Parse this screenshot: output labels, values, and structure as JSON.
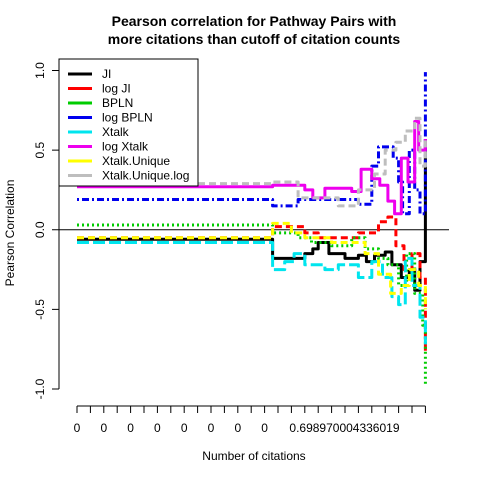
{
  "chart_data": {
    "type": "line",
    "title": [
      "Pearson correlation for Pathway Pairs with",
      "more citations than cutoff of citation counts"
    ],
    "xlabel": "Number of citations",
    "ylabel": "Pearson Correlation",
    "ylim": [
      -1.0,
      1.0
    ],
    "yticks": [
      "-1.0",
      "-0.5",
      "0.0",
      "0.5",
      "1.0"
    ],
    "ytick_values": [
      -1.0,
      -0.5,
      0.0,
      0.5,
      1.0
    ],
    "xtick_count": 27,
    "xtick_labels": [
      "0",
      "0",
      "0",
      "0",
      "0",
      "0",
      "0",
      "0",
      "0.698970004336019"
    ],
    "xtick_label_indices": [
      0,
      2,
      4,
      6,
      8,
      10,
      12,
      14,
      16
    ],
    "x_range": [
      0,
      26.5
    ],
    "reference_line_y": 0,
    "legend_position": "top-left",
    "series": [
      {
        "name": "JI",
        "color": "#000000",
        "dash": "solid",
        "points": [
          [
            0,
            -0.06
          ],
          [
            14.6,
            -0.06
          ],
          [
            14.6,
            -0.18
          ],
          [
            17,
            -0.18
          ],
          [
            17,
            -0.15
          ],
          [
            17.6,
            -0.15
          ],
          [
            17.6,
            -0.12
          ],
          [
            18,
            -0.12
          ],
          [
            18,
            -0.08
          ],
          [
            18.8,
            -0.08
          ],
          [
            18.8,
            -0.15
          ],
          [
            20,
            -0.15
          ],
          [
            20,
            -0.18
          ],
          [
            21,
            -0.18
          ],
          [
            21,
            -0.16
          ],
          [
            21.6,
            -0.16
          ],
          [
            21.6,
            -0.2
          ],
          [
            22.2,
            -0.2
          ],
          [
            22.2,
            -0.16
          ],
          [
            23,
            -0.16
          ],
          [
            23,
            -0.14
          ],
          [
            23.5,
            -0.14
          ],
          [
            23.5,
            -0.22
          ],
          [
            24.2,
            -0.22
          ],
          [
            24.2,
            -0.3
          ],
          [
            24.8,
            -0.3
          ],
          [
            24.8,
            -0.25
          ],
          [
            25.2,
            -0.25
          ],
          [
            25.2,
            -0.38
          ],
          [
            25.6,
            -0.38
          ],
          [
            25.6,
            -0.2
          ],
          [
            26,
            -0.2
          ],
          [
            26,
            0.57
          ]
        ]
      },
      {
        "name": "log JI",
        "color": "#ff0000",
        "dash": "dashed",
        "points": [
          [
            0,
            -0.05
          ],
          [
            14.6,
            -0.05
          ],
          [
            14.6,
            0.02
          ],
          [
            17,
            0.02
          ],
          [
            17,
            -0.02
          ],
          [
            18,
            -0.02
          ],
          [
            18,
            -0.05
          ],
          [
            21,
            -0.05
          ],
          [
            21,
            -0.02
          ],
          [
            22.5,
            -0.02
          ],
          [
            22.5,
            0.05
          ],
          [
            23.2,
            0.05
          ],
          [
            23.2,
            0.08
          ],
          [
            23.8,
            0.08
          ],
          [
            23.8,
            -0.1
          ],
          [
            24.4,
            -0.1
          ],
          [
            24.4,
            -0.25
          ],
          [
            25,
            -0.25
          ],
          [
            25,
            -0.15
          ],
          [
            25.6,
            -0.15
          ],
          [
            25.6,
            -0.3
          ],
          [
            26,
            -0.3
          ],
          [
            26,
            -0.78
          ]
        ]
      },
      {
        "name": "BPLN",
        "color": "#00cc00",
        "dash": "dotted",
        "points": [
          [
            0,
            0.03
          ],
          [
            14.6,
            0.03
          ],
          [
            14.6,
            -0.02
          ],
          [
            16.5,
            -0.02
          ],
          [
            16.5,
            -0.05
          ],
          [
            17.5,
            -0.05
          ],
          [
            17.5,
            -0.08
          ],
          [
            19,
            -0.08
          ],
          [
            19,
            -0.1
          ],
          [
            20.5,
            -0.1
          ],
          [
            20.5,
            -0.05
          ],
          [
            21.5,
            -0.05
          ],
          [
            21.5,
            -0.12
          ],
          [
            22.5,
            -0.12
          ],
          [
            22.5,
            -0.18
          ],
          [
            23.2,
            -0.18
          ],
          [
            23.2,
            -0.22
          ],
          [
            24,
            -0.22
          ],
          [
            24,
            -0.35
          ],
          [
            24.6,
            -0.35
          ],
          [
            24.6,
            -0.15
          ],
          [
            25.2,
            -0.15
          ],
          [
            25.2,
            -0.4
          ],
          [
            25.8,
            -0.4
          ],
          [
            25.8,
            -0.6
          ],
          [
            26,
            -0.6
          ],
          [
            26,
            -0.97
          ]
        ]
      },
      {
        "name": "log BPLN",
        "color": "#0000ee",
        "dash": "dotdash",
        "points": [
          [
            0,
            0.19
          ],
          [
            14.6,
            0.19
          ],
          [
            14.6,
            0.15
          ],
          [
            16.5,
            0.15
          ],
          [
            16.5,
            0.19
          ],
          [
            21,
            0.19
          ],
          [
            21,
            0.16
          ],
          [
            22,
            0.16
          ],
          [
            22,
            0.4
          ],
          [
            22.5,
            0.4
          ],
          [
            22.5,
            0.52
          ],
          [
            23.6,
            0.52
          ],
          [
            23.6,
            0.45
          ],
          [
            24,
            0.45
          ],
          [
            24,
            0.3
          ],
          [
            24.3,
            0.3
          ],
          [
            24.3,
            0.1
          ],
          [
            24.8,
            0.1
          ],
          [
            24.8,
            0.5
          ],
          [
            25.2,
            0.5
          ],
          [
            25.2,
            0.25
          ],
          [
            25.6,
            0.25
          ],
          [
            25.6,
            0.1
          ],
          [
            26,
            0.1
          ],
          [
            26,
            0.99
          ]
        ]
      },
      {
        "name": "Xtalk",
        "color": "#00e5ee",
        "dash": "longdash",
        "points": [
          [
            0,
            -0.08
          ],
          [
            14.6,
            -0.08
          ],
          [
            14.6,
            -0.25
          ],
          [
            15.5,
            -0.25
          ],
          [
            15.5,
            -0.2
          ],
          [
            16.2,
            -0.2
          ],
          [
            16.2,
            -0.15
          ],
          [
            17,
            -0.15
          ],
          [
            17,
            -0.22
          ],
          [
            18.5,
            -0.22
          ],
          [
            18.5,
            -0.25
          ],
          [
            19.5,
            -0.25
          ],
          [
            19.5,
            -0.22
          ],
          [
            21,
            -0.22
          ],
          [
            21,
            -0.3
          ],
          [
            22,
            -0.3
          ],
          [
            22,
            -0.2
          ],
          [
            22.8,
            -0.2
          ],
          [
            22.8,
            -0.3
          ],
          [
            23.5,
            -0.3
          ],
          [
            23.5,
            -0.42
          ],
          [
            24,
            -0.42
          ],
          [
            24,
            -0.47
          ],
          [
            24.5,
            -0.47
          ],
          [
            24.5,
            -0.18
          ],
          [
            25,
            -0.18
          ],
          [
            25,
            -0.35
          ],
          [
            25.6,
            -0.35
          ],
          [
            25.6,
            -0.55
          ],
          [
            26,
            -0.55
          ],
          [
            26,
            -0.72
          ]
        ]
      },
      {
        "name": "log Xtalk",
        "color": "#ee00ee",
        "dash": "solid",
        "points": [
          [
            0,
            0.27
          ],
          [
            14.6,
            0.27
          ],
          [
            14.6,
            0.28
          ],
          [
            17,
            0.28
          ],
          [
            17,
            0.25
          ],
          [
            17.6,
            0.25
          ],
          [
            17.6,
            0.2
          ],
          [
            18.5,
            0.2
          ],
          [
            18.5,
            0.26
          ],
          [
            20.5,
            0.26
          ],
          [
            20.5,
            0.24
          ],
          [
            21.2,
            0.24
          ],
          [
            21.2,
            0.38
          ],
          [
            22,
            0.38
          ],
          [
            22,
            0.32
          ],
          [
            22.6,
            0.32
          ],
          [
            22.6,
            0.28
          ],
          [
            23.2,
            0.28
          ],
          [
            23.2,
            0.18
          ],
          [
            23.7,
            0.18
          ],
          [
            23.7,
            0.1
          ],
          [
            24.2,
            0.1
          ],
          [
            24.2,
            0.45
          ],
          [
            24.7,
            0.45
          ],
          [
            24.7,
            0.3
          ],
          [
            25.2,
            0.3
          ],
          [
            25.2,
            0.68
          ],
          [
            25.5,
            0.68
          ],
          [
            25.5,
            0.5
          ],
          [
            26,
            0.5
          ],
          [
            26,
            0.57
          ]
        ]
      },
      {
        "name": "Xtalk.Unique",
        "color": "#ffff00",
        "dash": "dashed",
        "points": [
          [
            0,
            -0.05
          ],
          [
            14.6,
            -0.05
          ],
          [
            14.6,
            0.04
          ],
          [
            16,
            0.04
          ],
          [
            16,
            -0.02
          ],
          [
            17,
            -0.02
          ],
          [
            17,
            -0.05
          ],
          [
            19,
            -0.05
          ],
          [
            19,
            -0.08
          ],
          [
            21.5,
            -0.08
          ],
          [
            21.5,
            -0.15
          ],
          [
            22.5,
            -0.15
          ],
          [
            22.5,
            -0.28
          ],
          [
            23.4,
            -0.28
          ],
          [
            23.4,
            -0.4
          ],
          [
            24.2,
            -0.4
          ],
          [
            24.2,
            -0.35
          ],
          [
            24.8,
            -0.35
          ],
          [
            24.8,
            -0.25
          ],
          [
            25.5,
            -0.25
          ],
          [
            25.5,
            -0.35
          ],
          [
            26,
            -0.35
          ],
          [
            26,
            -0.5
          ]
        ]
      },
      {
        "name": "Xtalk.Unique.log",
        "color": "#bebebe",
        "dash": "dashed",
        "points": [
          [
            0,
            0.29
          ],
          [
            14.6,
            0.29
          ],
          [
            14.6,
            0.3
          ],
          [
            16.5,
            0.3
          ],
          [
            16.5,
            0.2
          ],
          [
            19.5,
            0.2
          ],
          [
            19.5,
            0.15
          ],
          [
            21,
            0.15
          ],
          [
            21,
            0.25
          ],
          [
            22.2,
            0.25
          ],
          [
            22.2,
            0.35
          ],
          [
            23,
            0.35
          ],
          [
            23,
            0.5
          ],
          [
            23.8,
            0.5
          ],
          [
            23.8,
            0.55
          ],
          [
            24.5,
            0.55
          ],
          [
            24.5,
            0.62
          ],
          [
            25.2,
            0.62
          ],
          [
            25.2,
            0.7
          ],
          [
            25.6,
            0.7
          ],
          [
            25.6,
            0.4
          ],
          [
            26,
            0.4
          ],
          [
            26,
            0.57
          ]
        ]
      }
    ]
  }
}
